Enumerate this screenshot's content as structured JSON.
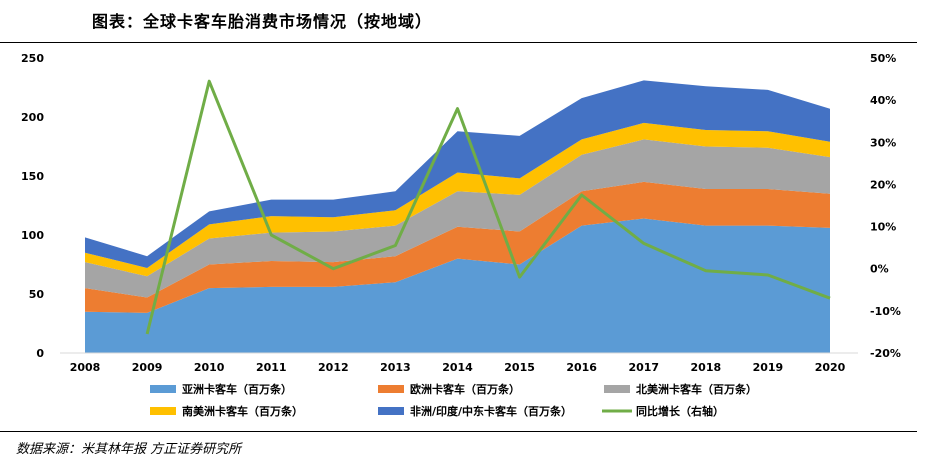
{
  "header": {
    "title": "图表：全球卡客车胎消费市场情况（按地域）"
  },
  "footer": {
    "source": "数据来源：米其林年报  方正证券研究所"
  },
  "chart_data": {
    "type": "area",
    "categories": [
      "2008",
      "2009",
      "2010",
      "2011",
      "2012",
      "2013",
      "2014",
      "2015",
      "2016",
      "2017",
      "2018",
      "2019",
      "2020"
    ],
    "series": [
      {
        "name": "亚洲卡客车（百万条）",
        "type": "area",
        "axis": "left",
        "color": "#5B9BD5",
        "values": [
          35,
          34,
          55,
          56,
          56,
          60,
          80,
          75,
          108,
          114,
          108,
          108,
          106
        ]
      },
      {
        "name": "欧洲卡客车（百万条）",
        "type": "area",
        "axis": "left",
        "color": "#ED7D31",
        "values": [
          20,
          13,
          20,
          22,
          21,
          22,
          27,
          28,
          29,
          31,
          31,
          31,
          29
        ]
      },
      {
        "name": "北美洲卡客车（百万条）",
        "type": "area",
        "axis": "left",
        "color": "#A5A5A5",
        "values": [
          22,
          18,
          22,
          24,
          26,
          26,
          30,
          31,
          31,
          36,
          36,
          35,
          31
        ]
      },
      {
        "name": "南美洲卡客车（百万条）",
        "type": "area",
        "axis": "left",
        "color": "#FFC000",
        "values": [
          8,
          7,
          12,
          14,
          12,
          13,
          16,
          14,
          13,
          14,
          14,
          14,
          13
        ]
      },
      {
        "name": "非洲/印度/中东卡客车（百万条）",
        "type": "area",
        "axis": "left",
        "color": "#4472C4",
        "values": [
          13,
          10,
          11,
          14,
          15,
          16,
          35,
          36,
          35,
          36,
          37,
          35,
          28
        ]
      },
      {
        "name": "同比增长（右轴）",
        "type": "line",
        "axis": "right",
        "color": "#70AD47",
        "values": [
          null,
          -15.5,
          44.5,
          8,
          0,
          5.5,
          38,
          -2,
          17.5,
          6,
          -0.5,
          -1.5,
          -7
        ]
      }
    ],
    "y_left": {
      "min": 0,
      "max": 250,
      "ticks": [
        0,
        50,
        100,
        150,
        200,
        250
      ]
    },
    "y_right": {
      "min": -20,
      "max": 50,
      "ticks": [
        "-20%",
        "-10%",
        "0%",
        "10%",
        "20%",
        "30%",
        "40%",
        "50%"
      ]
    },
    "legend_position": "bottom",
    "grid": false
  }
}
